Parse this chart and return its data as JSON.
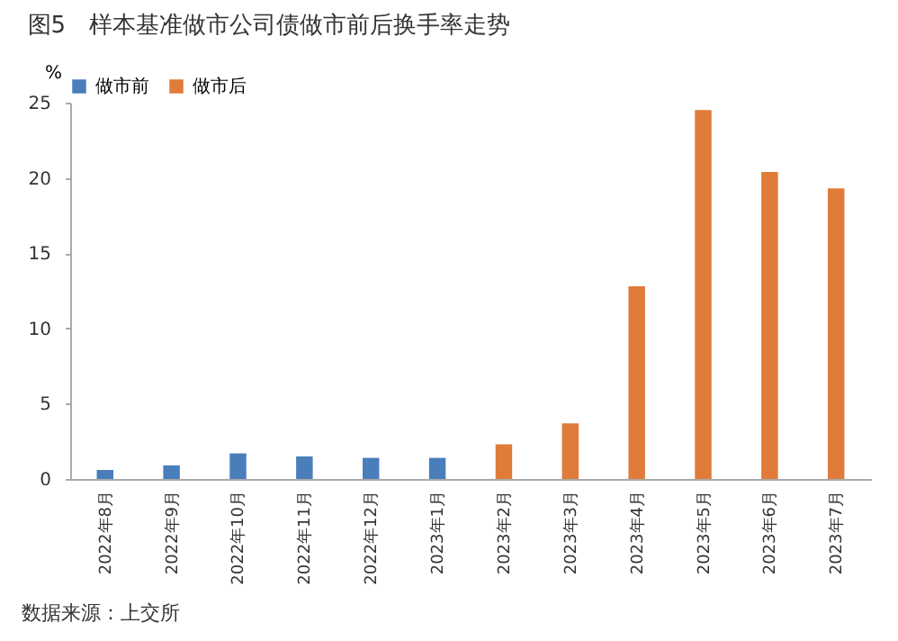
{
  "chart_data": {
    "type": "bar",
    "title": "图5　样本基准做市公司债做市前后换手率走势",
    "ylabel": "%",
    "categories": [
      "2022年8月",
      "2022年9月",
      "2022年10月",
      "2022年11月",
      "2022年12月",
      "2023年1月",
      "2023年2月",
      "2023年3月",
      "2023年4月",
      "2023年5月",
      "2023年6月",
      "2023年7月"
    ],
    "series": [
      {
        "name": "做市前",
        "color": "#4a7ebb",
        "values": [
          0.6,
          0.9,
          1.7,
          1.5,
          1.4,
          1.4,
          null,
          null,
          null,
          null,
          null,
          null
        ]
      },
      {
        "name": "做市后",
        "color": "#e07b39",
        "values": [
          null,
          null,
          null,
          null,
          null,
          null,
          2.3,
          3.7,
          12.8,
          24.5,
          20.4,
          19.3
        ]
      }
    ],
    "ylim": [
      0,
      25
    ],
    "yticks": [
      0,
      5,
      10,
      15,
      20,
      25
    ],
    "grid": false,
    "legend": "top",
    "annotations": [
      "数据来源：上交所"
    ]
  }
}
